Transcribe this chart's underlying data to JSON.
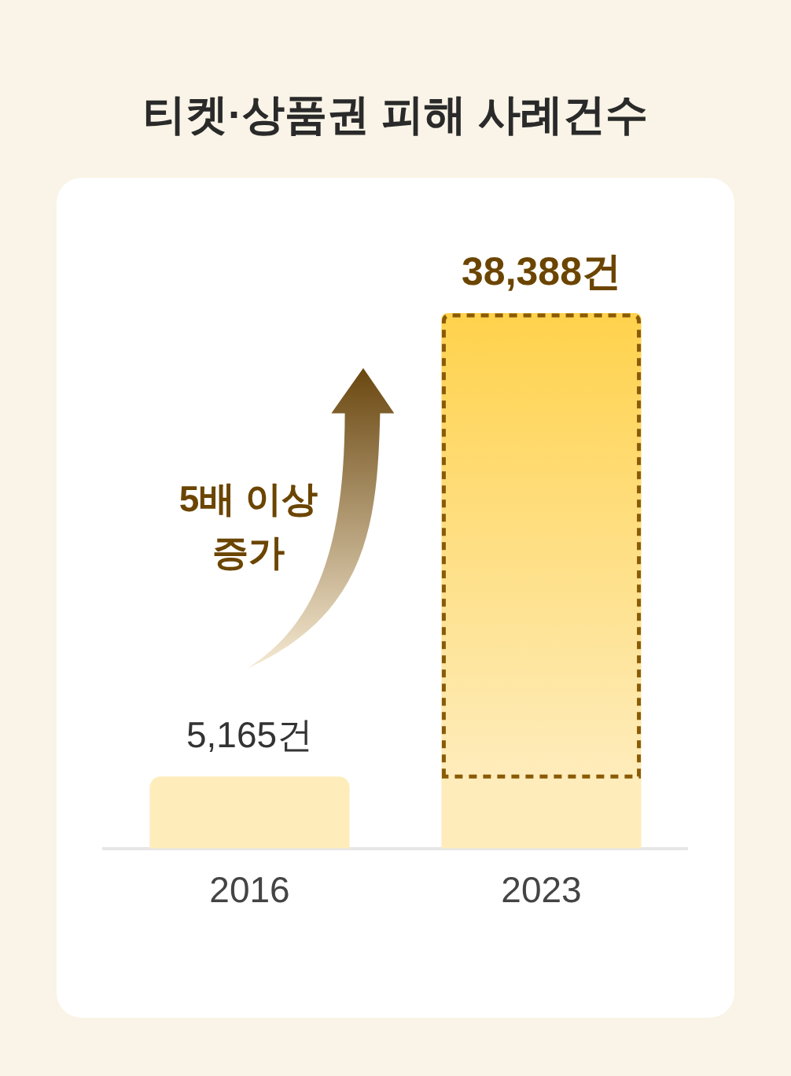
{
  "chart_data": {
    "type": "bar",
    "title": "티켓·상품권 피해 사례건수",
    "categories": [
      "2016",
      "2023"
    ],
    "values": [
      5165,
      38388
    ],
    "colors": [
      "#feecbb",
      "#ffd24c"
    ],
    "value_labels": [
      "5,165건",
      "38,388건"
    ],
    "tick_labels": "x",
    "annotations": [
      "5배 이상 증가"
    ]
  }
}
